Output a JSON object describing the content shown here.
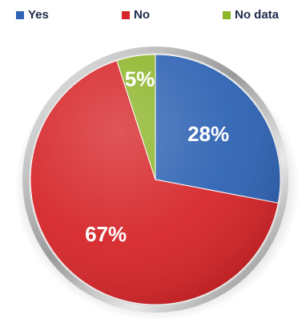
{
  "chart_data": {
    "type": "pie",
    "categories": [
      "Yes",
      "No",
      "No data"
    ],
    "values": [
      28,
      67,
      5
    ],
    "labels": [
      "28%",
      "67%",
      "5%"
    ],
    "colors": [
      "#2f63b3",
      "#d6262a",
      "#8db52a"
    ],
    "legend_position": "top",
    "legend_text_color": "#1f2a4a",
    "label_color": "#ffffff",
    "start_angle_deg": 0,
    "direction": "clockwise"
  }
}
